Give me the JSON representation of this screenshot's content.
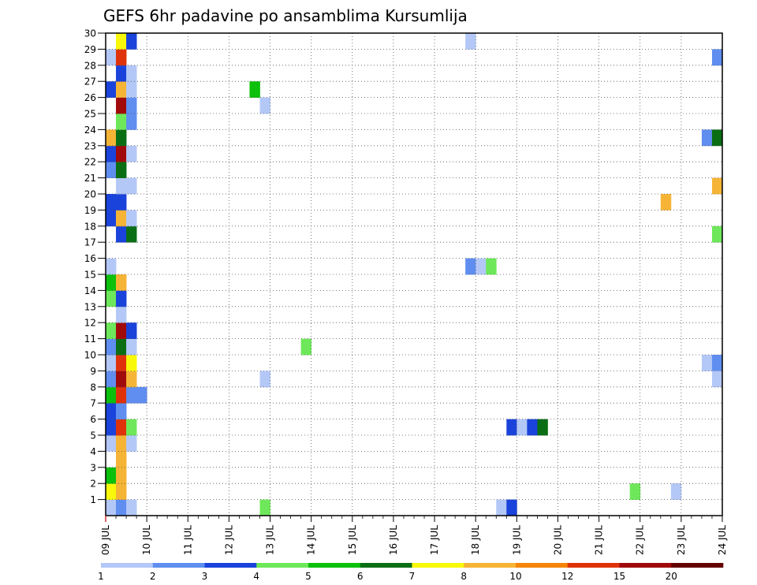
{
  "chart_data": {
    "type": "heatmap",
    "title": "GEFS 6hr padavine po ansamblima Kursumlija",
    "xlabel": "",
    "ylabel": "",
    "x_tick_labels": [
      "09 JUL",
      "10 JUL",
      "11 JUL",
      "12 JUL",
      "13 JUL",
      "14 JUL",
      "15 JUL",
      "16 JUL",
      "17 JUL",
      "18 JUL",
      "19 JUL",
      "20 JUL",
      "21 JUL",
      "22 JUL",
      "23 JUL",
      "24 JUL"
    ],
    "y_tick_labels": [
      "1",
      "2",
      "3",
      "4",
      "5",
      "6",
      "7",
      "8",
      "9",
      "10",
      "11",
      "12",
      "13",
      "14",
      "15",
      "16",
      "17",
      "18",
      "19",
      "20",
      "21",
      "22",
      "23",
      "24",
      "25",
      "26",
      "27",
      "28",
      "29",
      "30"
    ],
    "x_range_days": [
      0,
      15
    ],
    "y_range": [
      0,
      30
    ],
    "grid": "dotted",
    "legend": {
      "position": "bottom",
      "tick_labels": [
        "1",
        "2",
        "3",
        "4",
        "5",
        "6",
        "7",
        "8",
        "10",
        "12",
        "15",
        "20"
      ],
      "colors": [
        "#b4c8f8",
        "#5f8ef0",
        "#1a43db",
        "#6ee85a",
        "#0cc00c",
        "#0a6e14",
        "#f8f80a",
        "#f6b436",
        "#f6860a",
        "#e0320a",
        "#a00a0a",
        "#640000"
      ]
    },
    "bin_thresholds": [
      1,
      2,
      3,
      4,
      5,
      6,
      7,
      8,
      10,
      12,
      15,
      20
    ],
    "cells": [
      {
        "t": 0,
        "m": 1,
        "v": 1.5
      },
      {
        "t": 1,
        "m": 1,
        "v": 2.5
      },
      {
        "t": 2,
        "m": 1,
        "v": 1.5
      },
      {
        "t": 0,
        "m": 2,
        "v": 7.5
      },
      {
        "t": 1,
        "m": 2,
        "v": 9
      },
      {
        "t": 0,
        "m": 3,
        "v": 5.5
      },
      {
        "t": 1,
        "m": 3,
        "v": 9
      },
      {
        "t": 1,
        "m": 4,
        "v": 9
      },
      {
        "t": 0,
        "m": 5,
        "v": 1.5
      },
      {
        "t": 1,
        "m": 5,
        "v": 9
      },
      {
        "t": 2,
        "m": 5,
        "v": 1.5
      },
      {
        "t": 0,
        "m": 6,
        "v": 3.5
      },
      {
        "t": 1,
        "m": 6,
        "v": 13
      },
      {
        "t": 2,
        "m": 6,
        "v": 4.5
      },
      {
        "t": 0,
        "m": 7,
        "v": 3.5
      },
      {
        "t": 1,
        "m": 7,
        "v": 2.5
      },
      {
        "t": 0,
        "m": 8,
        "v": 5.5
      },
      {
        "t": 1,
        "m": 8,
        "v": 13
      },
      {
        "t": 2,
        "m": 8,
        "v": 2.5
      },
      {
        "t": 3,
        "m": 8,
        "v": 2.5
      },
      {
        "t": 0,
        "m": 9,
        "v": 2.5
      },
      {
        "t": 1,
        "m": 9,
        "v": 17
      },
      {
        "t": 2,
        "m": 9,
        "v": 9
      },
      {
        "t": 0,
        "m": 10,
        "v": 1.5
      },
      {
        "t": 1,
        "m": 10,
        "v": 13
      },
      {
        "t": 2,
        "m": 10,
        "v": 7.5
      },
      {
        "t": 0,
        "m": 11,
        "v": 2.5
      },
      {
        "t": 1,
        "m": 11,
        "v": 6.5
      },
      {
        "t": 2,
        "m": 11,
        "v": 1.5
      },
      {
        "t": 0,
        "m": 12,
        "v": 4.5
      },
      {
        "t": 1,
        "m": 12,
        "v": 17
      },
      {
        "t": 2,
        "m": 12,
        "v": 3.5
      },
      {
        "t": 1,
        "m": 13,
        "v": 1.5
      },
      {
        "t": 0,
        "m": 14,
        "v": 4.5
      },
      {
        "t": 1,
        "m": 14,
        "v": 3.5
      },
      {
        "t": 0,
        "m": 15,
        "v": 5.5
      },
      {
        "t": 1,
        "m": 15,
        "v": 9
      },
      {
        "t": 0,
        "m": 16,
        "v": 1.5
      },
      {
        "t": 1,
        "m": 18,
        "v": 3.5
      },
      {
        "t": 2,
        "m": 18,
        "v": 6.5
      },
      {
        "t": 0,
        "m": 19,
        "v": 3.5
      },
      {
        "t": 1,
        "m": 19,
        "v": 9
      },
      {
        "t": 2,
        "m": 19,
        "v": 1.5
      },
      {
        "t": 0,
        "m": 20,
        "v": 3.5
      },
      {
        "t": 1,
        "m": 20,
        "v": 3.5
      },
      {
        "t": 1,
        "m": 21,
        "v": 1.5
      },
      {
        "t": 2,
        "m": 21,
        "v": 1.5
      },
      {
        "t": 0,
        "m": 22,
        "v": 2.5
      },
      {
        "t": 1,
        "m": 22,
        "v": 6.5
      },
      {
        "t": 0,
        "m": 23,
        "v": 3.5
      },
      {
        "t": 1,
        "m": 23,
        "v": 17
      },
      {
        "t": 2,
        "m": 23,
        "v": 1.5
      },
      {
        "t": 0,
        "m": 24,
        "v": 9
      },
      {
        "t": 1,
        "m": 24,
        "v": 6.5
      },
      {
        "t": 1,
        "m": 25,
        "v": 4.5
      },
      {
        "t": 2,
        "m": 25,
        "v": 2.5
      },
      {
        "t": 1,
        "m": 26,
        "v": 17
      },
      {
        "t": 2,
        "m": 26,
        "v": 2.5
      },
      {
        "t": 0,
        "m": 27,
        "v": 3.5
      },
      {
        "t": 1,
        "m": 27,
        "v": 9
      },
      {
        "t": 2,
        "m": 27,
        "v": 1.5
      },
      {
        "t": 1,
        "m": 28,
        "v": 3.5
      },
      {
        "t": 2,
        "m": 28,
        "v": 1.5
      },
      {
        "t": 0,
        "m": 29,
        "v": 1.5
      },
      {
        "t": 1,
        "m": 29,
        "v": 13
      },
      {
        "t": 1,
        "m": 30,
        "v": 7.5
      },
      {
        "t": 2,
        "m": 30,
        "v": 3.5
      },
      {
        "t": 14,
        "m": 27,
        "v": 5.5
      },
      {
        "t": 15,
        "m": 26,
        "v": 1.5
      },
      {
        "t": 15,
        "m": 9,
        "v": 1.5
      },
      {
        "t": 15,
        "m": 1,
        "v": 4.5
      },
      {
        "t": 19,
        "m": 11,
        "v": 4.5
      },
      {
        "t": 35,
        "m": 30,
        "v": 1.5
      },
      {
        "t": 35,
        "m": 16,
        "v": 2.5
      },
      {
        "t": 36,
        "m": 16,
        "v": 1.5
      },
      {
        "t": 37,
        "m": 16,
        "v": 4.5
      },
      {
        "t": 38,
        "m": 1,
        "v": 1.5
      },
      {
        "t": 39,
        "m": 1,
        "v": 3.5
      },
      {
        "t": 39,
        "m": 6,
        "v": 3.5
      },
      {
        "t": 40,
        "m": 6,
        "v": 1.5
      },
      {
        "t": 41,
        "m": 6,
        "v": 3.5
      },
      {
        "t": 42,
        "m": 6,
        "v": 6.5
      },
      {
        "t": 51,
        "m": 2,
        "v": 4.5
      },
      {
        "t": 54,
        "m": 20,
        "v": 9
      },
      {
        "t": 55,
        "m": 2,
        "v": 1.5
      },
      {
        "t": 58,
        "m": 24,
        "v": 2.5
      },
      {
        "t": 58,
        "m": 10,
        "v": 1.5
      },
      {
        "t": 59,
        "m": 29,
        "v": 2.5
      },
      {
        "t": 59,
        "m": 24,
        "v": 6.5
      },
      {
        "t": 59,
        "m": 21,
        "v": 9
      },
      {
        "t": 59,
        "m": 18,
        "v": 4.5
      },
      {
        "t": 59,
        "m": 10,
        "v": 2.5
      },
      {
        "t": 59,
        "m": 9,
        "v": 1.5
      }
    ]
  }
}
